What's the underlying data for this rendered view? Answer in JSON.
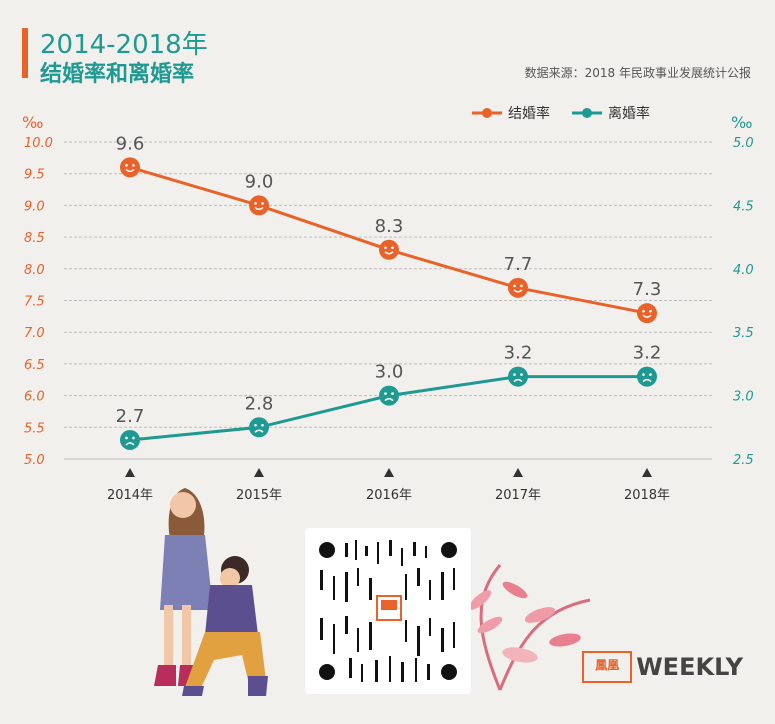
{
  "title": {
    "line1": "2014-2018年",
    "line2": "结婚率和离婚率"
  },
  "source": "数据来源：2018 年民政事业发展统计公报",
  "colors": {
    "marriage": "#e8622a",
    "divorce": "#1f9a93",
    "grid": "#bdbdbd"
  },
  "legend": {
    "marriage_label": "结婚率",
    "divorce_label": "离婚率"
  },
  "left_unit": "‰",
  "right_unit": "‰",
  "chart_data": {
    "type": "line",
    "x": [
      "2014年",
      "2015年",
      "2016年",
      "2017年",
      "2018年"
    ],
    "series": [
      {
        "name": "结婚率",
        "axis": "left",
        "values": [
          9.6,
          9.0,
          8.3,
          7.7,
          7.3
        ],
        "labels": [
          "9.6",
          "9.0",
          "8.3",
          "7.7",
          "7.3"
        ]
      },
      {
        "name": "离婚率",
        "axis": "right",
        "values": [
          2.65,
          2.75,
          3.0,
          3.15,
          3.15
        ],
        "labels": [
          "2.7",
          "2.8",
          "3.0",
          "3.2",
          "3.2"
        ]
      }
    ],
    "ylim_left": [
      5.0,
      10.0
    ],
    "ylim_right": [
      2.5,
      5.0
    ],
    "yticks_left": [
      "10.0",
      "9.5",
      "9.0",
      "8.5",
      "8.0",
      "7.5",
      "7.0",
      "6.5",
      "6.0",
      "5.5",
      "5.0"
    ],
    "yticks_right": [
      "5.0",
      "4.5",
      "4.0",
      "3.5",
      "3.0",
      "2.5"
    ],
    "grid": true,
    "legend_position": "top-right"
  },
  "footer": {
    "brand_cn": "鳳凰",
    "brand_en": "WEEKLY"
  },
  "qr_icon": "qr-code-icon",
  "illustration_icon": "proposal-couple-illustration"
}
